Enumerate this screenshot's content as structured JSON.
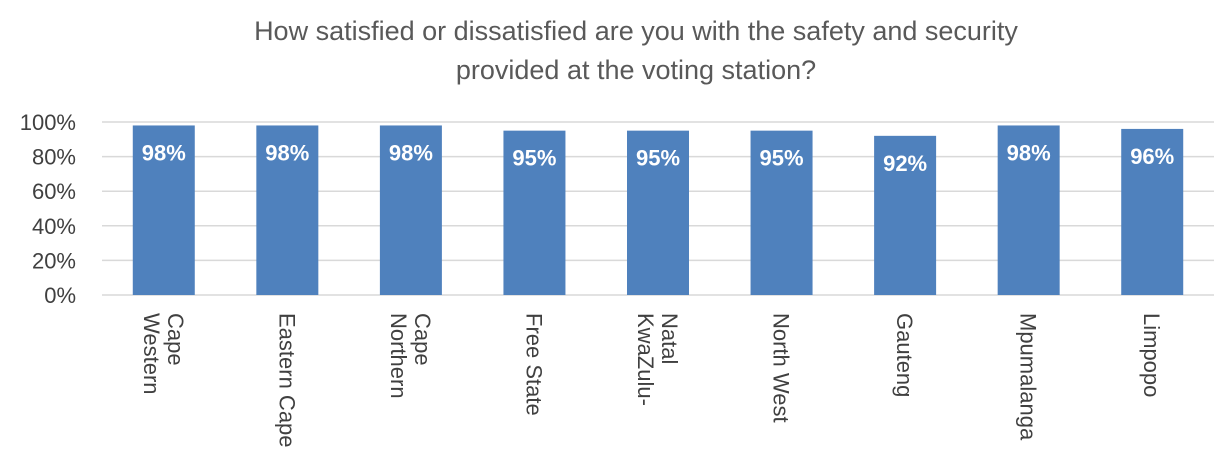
{
  "chart_data": {
    "type": "bar",
    "title_lines": [
      "How satisfied or dissatisfied are you with the safety and security",
      "provided at the voting station?"
    ],
    "categories": [
      [
        "Western",
        "Cape"
      ],
      [
        "Eastern Cape"
      ],
      [
        "Northern",
        "Cape"
      ],
      [
        "Free State"
      ],
      [
        "KwaZulu-",
        "Natal"
      ],
      [
        "North West"
      ],
      [
        "Gauteng"
      ],
      [
        "Mpumalanga"
      ],
      [
        "Limpopo"
      ]
    ],
    "values": [
      98,
      98,
      98,
      95,
      95,
      95,
      92,
      98,
      96
    ],
    "data_labels": [
      "98%",
      "98%",
      "98%",
      "95%",
      "95%",
      "95%",
      "92%",
      "98%",
      "96%"
    ],
    "ylim": [
      0,
      100
    ],
    "y_ticks": [
      0,
      20,
      40,
      60,
      80,
      100
    ],
    "y_tick_labels": [
      "0%",
      "20%",
      "40%",
      "60%",
      "80%",
      "100%"
    ],
    "grid": true,
    "bar_color": "#4F81BD",
    "grid_color": "#D9D9D9",
    "label_color": "#FFFFFF"
  }
}
